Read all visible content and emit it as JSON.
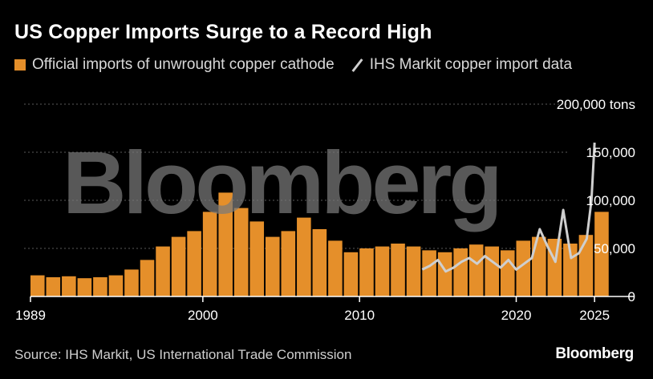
{
  "title": "US Copper Imports Surge to a Record High",
  "legend": {
    "official": "Official imports of unwrought copper cathode",
    "ihs": "IHS Markit copper import data"
  },
  "source": "Source: IHS Markit, US International Trade Commission",
  "brand": "Bloomberg",
  "watermark": "Bloomberg",
  "colors": {
    "official": "#e58f2a",
    "ihs": "#cfcfcf",
    "grid": "#5a5a5a",
    "axis": "#ffffff"
  },
  "chart_data": {
    "type": "bar",
    "y_unit": "tons",
    "ylim": [
      0,
      200000
    ],
    "yticks": [
      {
        "value": 0,
        "label": "0"
      },
      {
        "value": 50000,
        "label": "50,000"
      },
      {
        "value": 100000,
        "label": "100,000"
      },
      {
        "value": 150000,
        "label": "150,000"
      },
      {
        "value": 200000,
        "label": "200,000 tons"
      }
    ],
    "xlim": [
      1989,
      2027.5
    ],
    "xticks": [
      {
        "value": 1989,
        "label": "1989"
      },
      {
        "value": 2000,
        "label": "2000"
      },
      {
        "value": 2010,
        "label": "2010"
      },
      {
        "value": 2020,
        "label": "2020"
      },
      {
        "value": 2025,
        "label": "2025"
      }
    ],
    "series": [
      {
        "name": "Official imports of unwrought copper cathode",
        "type": "bar",
        "x": [
          1989,
          1990,
          1991,
          1992,
          1993,
          1994,
          1995,
          1996,
          1997,
          1998,
          1999,
          2000,
          2001,
          2002,
          2003,
          2004,
          2005,
          2006,
          2007,
          2008,
          2009,
          2010,
          2011,
          2012,
          2013,
          2014,
          2015,
          2016,
          2017,
          2018,
          2019,
          2020,
          2021,
          2022,
          2023,
          2024,
          2025
        ],
        "values": [
          22000,
          20000,
          21000,
          19000,
          20000,
          22000,
          28000,
          38000,
          52000,
          62000,
          68000,
          88000,
          108000,
          92000,
          78000,
          62000,
          68000,
          82000,
          70000,
          58000,
          46000,
          50000,
          52000,
          55000,
          52000,
          48000,
          46000,
          50000,
          54000,
          52000,
          48000,
          58000,
          62000,
          60000,
          55000,
          64000,
          88000
        ]
      },
      {
        "name": "IHS Markit copper import data",
        "type": "line",
        "x": [
          2014.0,
          2014.5,
          2015.0,
          2015.5,
          2016.0,
          2016.5,
          2017.0,
          2017.5,
          2018.0,
          2018.5,
          2019.0,
          2019.5,
          2020.0,
          2020.5,
          2021.0,
          2021.5,
          2022.0,
          2022.5,
          2023.0,
          2023.5,
          2024.0,
          2024.5,
          2024.8,
          2025.0
        ],
        "values": [
          28000,
          32000,
          38000,
          26000,
          30000,
          36000,
          40000,
          34000,
          42000,
          36000,
          30000,
          38000,
          28000,
          34000,
          40000,
          70000,
          52000,
          36000,
          90000,
          40000,
          45000,
          60000,
          100000,
          160000
        ]
      }
    ]
  }
}
